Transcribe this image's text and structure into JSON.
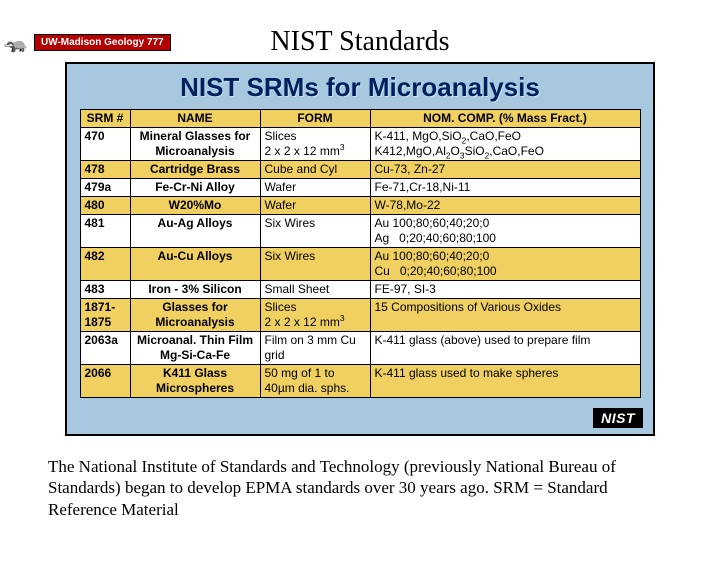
{
  "badge": {
    "crest": "🦡",
    "label": "UW-Madison Geology 777"
  },
  "slide_title": "NIST Standards",
  "panel": {
    "title": "NIST SRMs for Microanalysis",
    "bg_color": "#a8c8e0",
    "header_bg": "#f0d060",
    "highlight_bg": "#f0d060",
    "logo_text": "NIST",
    "columns": [
      "SRM #",
      "NAME",
      "FORM",
      "NOM. COMP. (% Mass Fract.)"
    ],
    "rows": [
      {
        "hl": false,
        "srm": "470",
        "name": "Mineral Glasses for Microanalysis",
        "form_html": "Slices<br>2 x 2 x 12 mm<sup>3</sup>",
        "comp_html": "K-411, MgO,SiO<sub>2</sub>,CaO,FeO<br>K412,MgO,Al<sub>2</sub>O<sub>3</sub>SiO<sub>2</sub>,CaO,FeO"
      },
      {
        "hl": true,
        "srm": "478",
        "name": "Cartridge Brass",
        "form_html": "Cube and Cyl",
        "comp_html": "Cu-73, Zn-27"
      },
      {
        "hl": false,
        "srm": "479a",
        "name": "Fe-Cr-Ni Alloy",
        "form_html": "Wafer",
        "comp_html": "Fe-71,Cr-18,Ni-11"
      },
      {
        "hl": true,
        "srm": "480",
        "name": "W20%Mo",
        "form_html": "Wafer",
        "comp_html": "W-78,Mo-22"
      },
      {
        "hl": false,
        "srm": "481",
        "name": "Au-Ag Alloys",
        "form_html": "Six Wires",
        "comp_html": "Au 100;80;60;40;20;0<br>Ag&nbsp;&nbsp;&nbsp;0;20;40;60;80;100"
      },
      {
        "hl": true,
        "srm": "482",
        "name": "Au-Cu Alloys",
        "form_html": "Six Wires",
        "comp_html": "Au 100;80;60;40;20;0<br>Cu&nbsp;&nbsp;&nbsp;0;20;40;60;80;100"
      },
      {
        "hl": false,
        "srm": "483",
        "name": "Iron - 3% Silicon",
        "form_html": "Small Sheet",
        "comp_html": "FE-97, SI-3"
      },
      {
        "hl": true,
        "srm": "1871-1875",
        "name": "Glasses for Microanalysis",
        "form_html": "Slices<br>2 x 2 x 12 mm<sup>3</sup>",
        "comp_html": "15 Compositions of Various Oxides"
      },
      {
        "hl": false,
        "srm": "2063a",
        "name": "Microanal. Thin Film Mg-Si-Ca-Fe",
        "form_html": "Film on 3 mm Cu grid",
        "comp_html": "K-411 glass (above) used to prepare film"
      },
      {
        "hl": true,
        "srm": "2066",
        "name": "K411 Glass Microspheres",
        "form_html": "50 mg of 1 to 40µm dia. sphs.",
        "comp_html": "K-411 glass used to make spheres"
      }
    ]
  },
  "caption": "The National Institute of Standards and Technology (previously National Bureau of Standards) began to develop EPMA standards over 30 years ago. SRM = Standard Reference Material"
}
